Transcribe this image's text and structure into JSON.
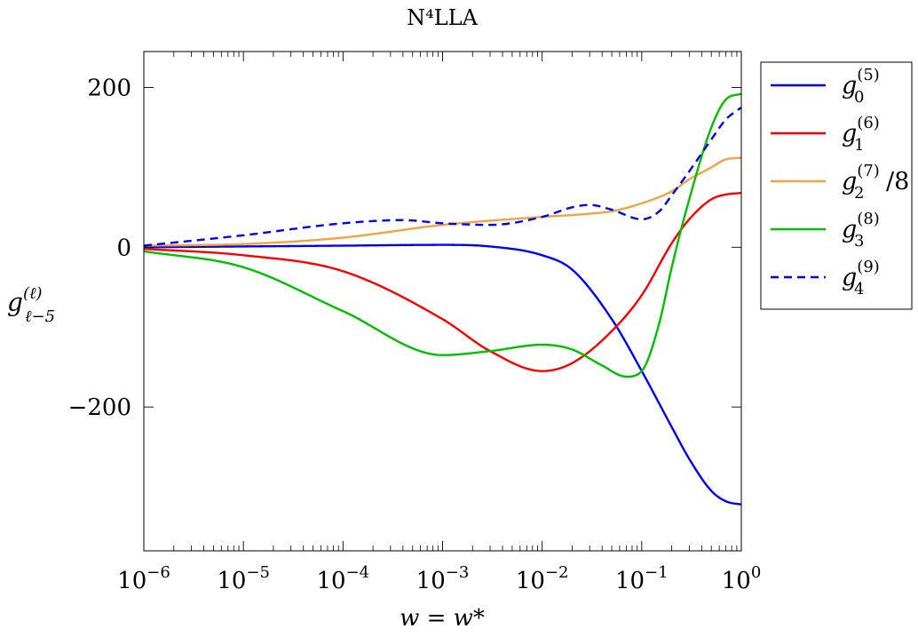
{
  "chart_data": {
    "type": "line",
    "title": "N⁴LLA",
    "xlabel": "w = w*",
    "ylabel": "g_{ℓ−5}^{(ℓ)}",
    "xscale": "log",
    "xlim": [
      1e-06,
      1
    ],
    "ylim": [
      -380,
      245
    ],
    "x_ticks": [
      {
        "value": 1e-06,
        "base": "10",
        "exp": "−6"
      },
      {
        "value": 1e-05,
        "base": "10",
        "exp": "−5"
      },
      {
        "value": 0.0001,
        "base": "10",
        "exp": "−4"
      },
      {
        "value": 0.001,
        "base": "10",
        "exp": "−3"
      },
      {
        "value": 0.01,
        "base": "10",
        "exp": "−2"
      },
      {
        "value": 0.1,
        "base": "10",
        "exp": "−1"
      },
      {
        "value": 1,
        "base": "10",
        "exp": "0"
      }
    ],
    "y_ticks": [
      {
        "value": 200,
        "label": "200"
      },
      {
        "value": 0,
        "label": "0"
      },
      {
        "value": -200,
        "label": "−200"
      }
    ],
    "grid": false,
    "legend_position": "outside-right-top",
    "series": [
      {
        "name": "g_0^{(5)}",
        "legend": {
          "base": "g",
          "sub": "0",
          "sup": "(5)",
          "suffix": ""
        },
        "color": "#0000ff",
        "dash": "solid",
        "x": [
          1e-06,
          1e-05,
          0.0001,
          0.001,
          0.003,
          0.01,
          0.02,
          0.05,
          0.1,
          0.2,
          0.3,
          0.5,
          0.7,
          1
        ],
        "y": [
          0,
          1,
          2,
          3,
          1,
          -10,
          -28,
          -90,
          -155,
          -225,
          -265,
          -305,
          -318,
          -322
        ]
      },
      {
        "name": "g_1^{(6)}",
        "legend": {
          "base": "g",
          "sub": "1",
          "sup": "(6)",
          "suffix": ""
        },
        "color": "#ff0000",
        "dash": "solid",
        "x": [
          1e-06,
          1e-05,
          0.0001,
          0.001,
          0.003,
          0.01,
          0.02,
          0.05,
          0.1,
          0.2,
          0.3,
          0.5,
          0.7,
          1
        ],
        "y": [
          -2,
          -10,
          -30,
          -90,
          -130,
          -155,
          -145,
          -105,
          -60,
          5,
          35,
          60,
          66,
          68
        ]
      },
      {
        "name": "g_2^{(7)}/8",
        "legend": {
          "base": "g",
          "sub": "2",
          "sup": "(7)",
          "suffix": "/8"
        },
        "color": "#f4a340",
        "dash": "solid",
        "x": [
          1e-06,
          1e-05,
          0.0001,
          0.001,
          0.01,
          0.03,
          0.05,
          0.1,
          0.2,
          0.3,
          0.5,
          0.7,
          1
        ],
        "y": [
          2,
          4,
          12,
          28,
          38,
          42,
          45,
          55,
          70,
          85,
          100,
          110,
          112
        ]
      },
      {
        "name": "g_3^{(8)}",
        "legend": {
          "base": "g",
          "sub": "3",
          "sup": "(8)",
          "suffix": ""
        },
        "color": "#00c000",
        "dash": "solid",
        "x": [
          1e-06,
          1e-05,
          0.0001,
          0.001,
          0.003,
          0.01,
          0.02,
          0.04,
          0.07,
          0.1,
          0.15,
          0.2,
          0.3,
          0.5,
          0.7,
          1
        ],
        "y": [
          -5,
          -25,
          -80,
          -135,
          -130,
          -122,
          -128,
          -148,
          -162,
          -155,
          -95,
          -25,
          60,
          150,
          185,
          192
        ]
      },
      {
        "name": "g_4^{(9)}",
        "legend": {
          "base": "g",
          "sub": "4",
          "sup": "(9)",
          "suffix": ""
        },
        "color": "#0000ff",
        "dash": "dashed",
        "x": [
          1e-06,
          1e-05,
          0.0001,
          0.0004,
          0.001,
          0.003,
          0.01,
          0.02,
          0.03,
          0.05,
          0.1,
          0.15,
          0.2,
          0.3,
          0.5,
          0.7,
          1
        ],
        "y": [
          2,
          15,
          30,
          34,
          30,
          28,
          38,
          50,
          53,
          47,
          35,
          45,
          65,
          95,
          135,
          160,
          175
        ]
      }
    ]
  }
}
